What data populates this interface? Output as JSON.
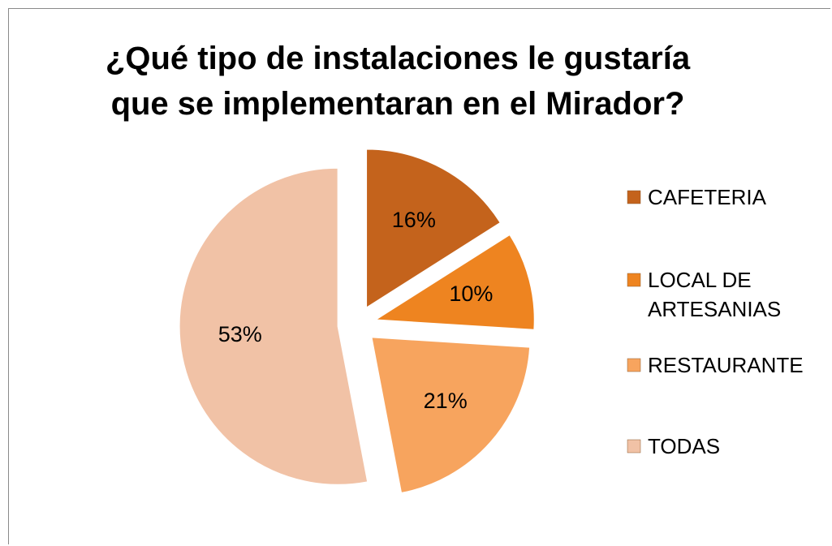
{
  "chart_data": {
    "type": "pie",
    "title": "¿Qué tipo de instalaciones le gustaría que se implementaran en el Mirador?",
    "categories": [
      "CAFETERIA",
      "LOCAL DE ARTESANIAS",
      "RESTAURANTE",
      "TODAS"
    ],
    "values": [
      16,
      10,
      21,
      53
    ],
    "value_labels": [
      "16%",
      "10%",
      "21%",
      "53%"
    ],
    "colors": [
      "#c4631c",
      "#ee8420",
      "#f7a45e",
      "#f1c2a6"
    ],
    "legend": "right"
  }
}
